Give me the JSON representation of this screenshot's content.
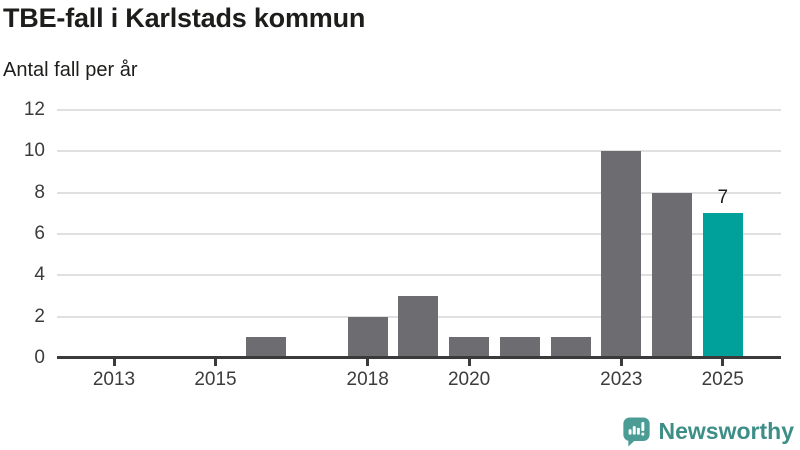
{
  "title": "TBE-fall i Karlstads kommun",
  "subtitle": "Antal fall per år",
  "logo": {
    "text": "Newsworthy",
    "icon": "newsworthy-speech-bubble-bar-chart-icon"
  },
  "chart_data": {
    "type": "bar",
    "title": "TBE-fall i Karlstads kommun",
    "ylabel": "Antal fall per år",
    "xlabel": "",
    "categories": [
      2013,
      2014,
      2015,
      2016,
      2017,
      2018,
      2019,
      2020,
      2021,
      2022,
      2023,
      2024,
      2025
    ],
    "values": [
      0,
      0,
      0,
      1,
      0,
      2,
      3,
      1,
      1,
      1,
      10,
      8,
      7
    ],
    "xticks": [
      2013,
      2015,
      2018,
      2020,
      2023,
      2025
    ],
    "yticks": [
      0,
      2,
      4,
      6,
      8,
      10,
      12
    ],
    "ylim": [
      0,
      12
    ],
    "grid": true,
    "legend_position": "none",
    "highlight": {
      "year": 2025,
      "value": 7,
      "label": "7"
    },
    "colors": {
      "bar": "#6d6c71",
      "highlight": "#00a19a",
      "grid": "#e0e0e0",
      "axis": "#3a3a3a",
      "text": "#3c3c3c",
      "value_label": "#1d1d1b"
    }
  }
}
